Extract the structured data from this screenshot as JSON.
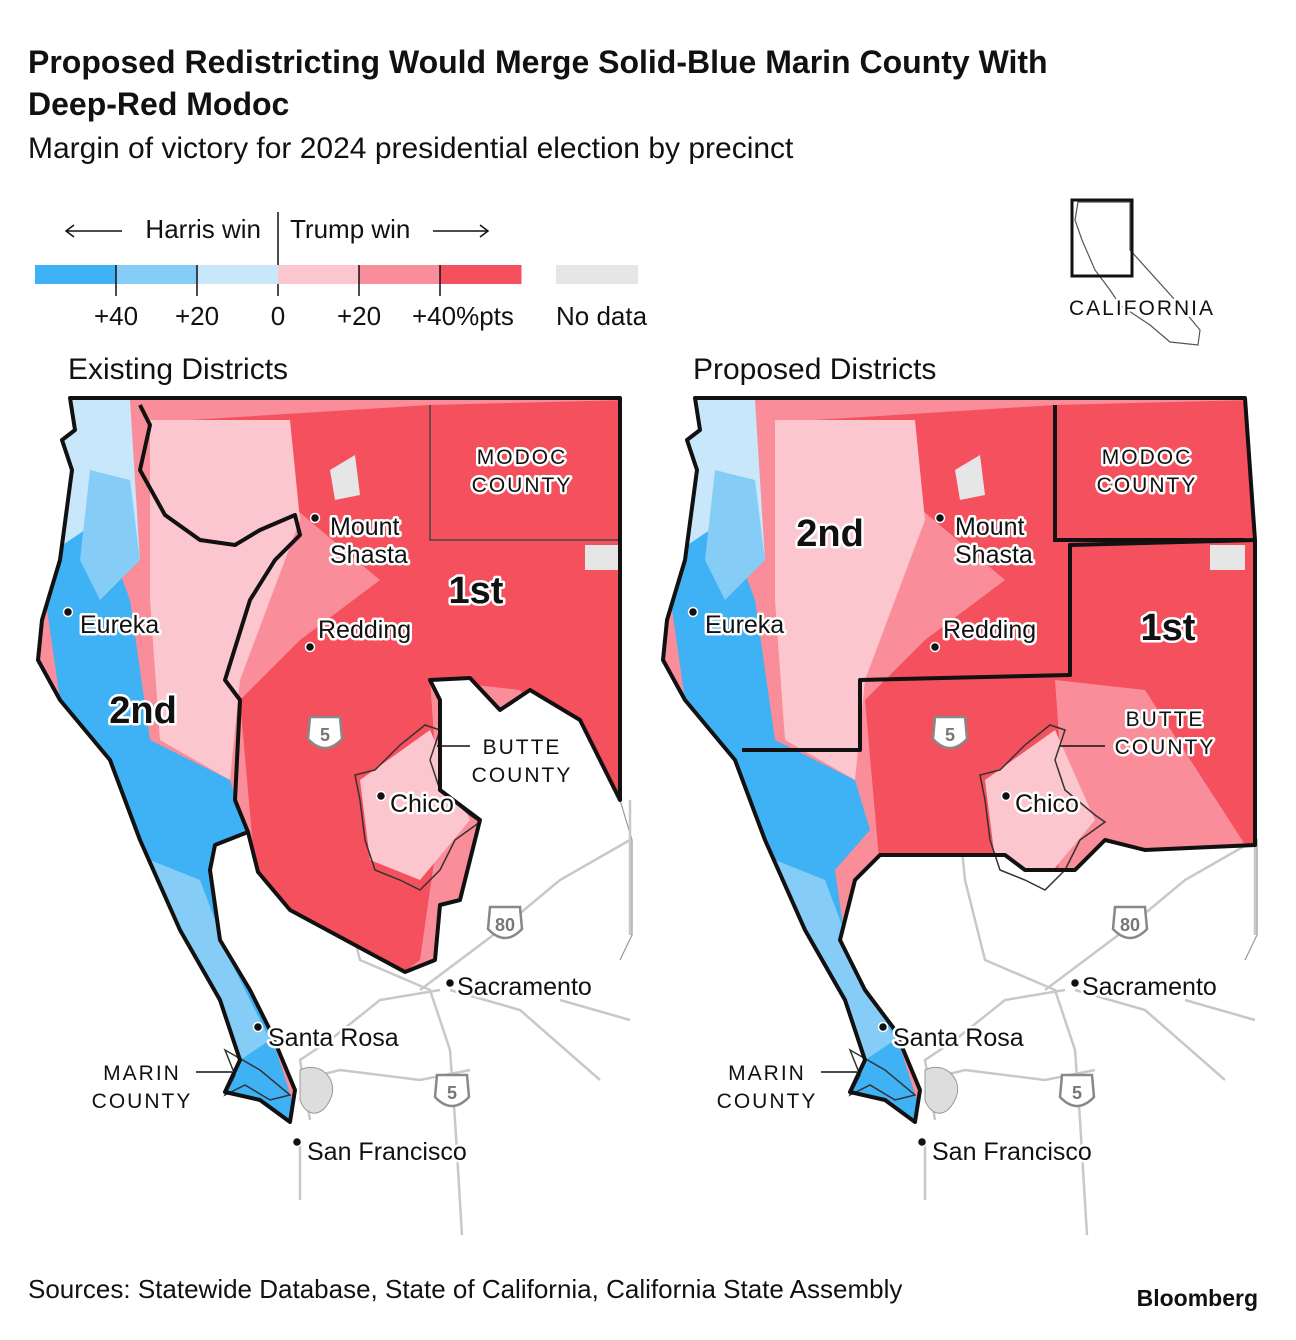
{
  "header": {
    "title": [
      "Proposed Redistricting Would Merge Solid-Blue Marin County With",
      "Deep-Red Modoc"
    ],
    "subtitle": "Margin of victory for 2024 presidential election by precinct"
  },
  "legend": {
    "left_label": "Harris win",
    "right_label": "Trump win",
    "colors": [
      "#3fb1f5",
      "#85cdf7",
      "#c9e7fa",
      "#fcc6cf",
      "#f98d99",
      "#f4505d"
    ],
    "ticks": [
      "+40",
      "+20",
      "0",
      "+20",
      "+40%pts"
    ],
    "no_data": {
      "label": "No data",
      "color": "#e6e6e6"
    }
  },
  "inset": {
    "label": "CALIFORNIA"
  },
  "maps": [
    {
      "title": "Existing Districts",
      "districts": [
        "1st",
        "2nd"
      ],
      "counties": [
        [
          "MODOC",
          "COUNTY"
        ],
        [
          "BUTTE",
          "COUNTY"
        ],
        [
          "MARIN",
          "COUNTY"
        ]
      ],
      "cities": [
        [
          "Mount",
          "Shasta"
        ],
        [
          "Eureka"
        ],
        [
          "Redding"
        ],
        [
          "Chico"
        ],
        [
          "Sacramento"
        ],
        [
          "Santa Rosa"
        ],
        [
          "San Francisco"
        ]
      ],
      "highways": [
        "5",
        "80",
        "5"
      ]
    },
    {
      "title": "Proposed Districts",
      "districts": [
        "1st",
        "2nd"
      ],
      "counties": [
        [
          "MODOC",
          "COUNTY"
        ],
        [
          "BUTTE",
          "COUNTY"
        ],
        [
          "MARIN",
          "COUNTY"
        ]
      ],
      "cities": [
        [
          "Mount",
          "Shasta"
        ],
        [
          "Eureka"
        ],
        [
          "Redding"
        ],
        [
          "Chico"
        ],
        [
          "Sacramento"
        ],
        [
          "Santa Rosa"
        ],
        [
          "San Francisco"
        ]
      ],
      "highways": [
        "5",
        "80",
        "5"
      ]
    }
  ],
  "footer": {
    "source": "Sources: Statewide Database, State of California, California State Assembly",
    "brand": "Bloomberg"
  }
}
